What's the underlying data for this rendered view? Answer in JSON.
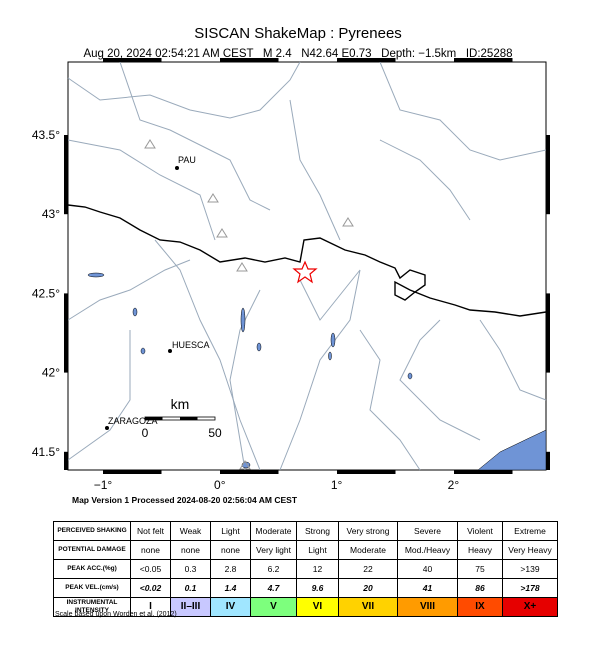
{
  "header": {
    "title": "SISCAN ShakeMap : Pyrenees",
    "subtitle": "Aug 20, 2024 02:54:21 AM CEST   M 2.4   N42.64 E0.73   Depth: −1.5km   ID:25288"
  },
  "map": {
    "lat_labels": [
      "43.5°",
      "43°",
      "42.5°",
      "42°",
      "41.5°"
    ],
    "lon_labels": [
      "−1°",
      "0°",
      "1°",
      "2°"
    ],
    "cities": [
      "PAU",
      "HUESCA",
      "ZARAGOZA"
    ],
    "scale": {
      "unit": "km",
      "start": "0",
      "end": "50"
    },
    "version": "Map Version 1 Processed 2024-08-20 02:56:04 AM CEST"
  },
  "table": {
    "rows": [
      {
        "label": "PERCEIVED SHAKING",
        "cells": [
          "Not felt",
          "Weak",
          "Light",
          "Moderate",
          "Strong",
          "Very strong",
          "Severe",
          "Violent",
          "Extreme"
        ]
      },
      {
        "label": "POTENTIAL DAMAGE",
        "cells": [
          "none",
          "none",
          "none",
          "Very light",
          "Light",
          "Moderate",
          "Mod./Heavy",
          "Heavy",
          "Very Heavy"
        ]
      },
      {
        "label": "PEAK ACC.(%g)",
        "cells": [
          "<0.05",
          "0.3",
          "2.8",
          "6.2",
          "12",
          "22",
          "40",
          "75",
          ">139"
        ]
      },
      {
        "label": "PEAK VEL.(cm/s)",
        "cells": [
          "<0.02",
          "0.1",
          "1.4",
          "4.7",
          "9.6",
          "20",
          "41",
          "86",
          ">178"
        ]
      },
      {
        "label": "INSTRUMENTAL INTENSITY",
        "cells": [
          "I",
          "II–III",
          "IV",
          "V",
          "VI",
          "VII",
          "VIII",
          "IX",
          "X+"
        ]
      }
    ],
    "intensity_colors": [
      "#ffffff",
      "#c8c8ff",
      "#a0e6ff",
      "#7dff7d",
      "#ffff00",
      "#ffd200",
      "#ff9b00",
      "#ff4b00",
      "#e60000"
    ]
  },
  "footer": "Scale based upon Worden et al. (2012)"
}
